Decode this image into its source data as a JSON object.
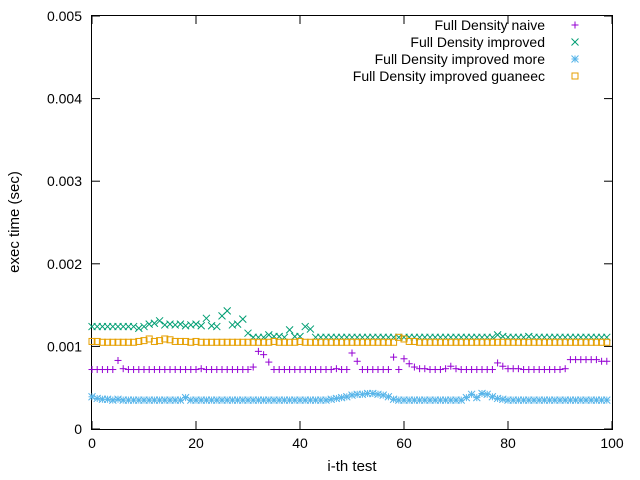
{
  "chart_data": {
    "type": "scatter",
    "xlabel": "i-th test",
    "ylabel": "exec time (sec)",
    "xlim": [
      0,
      100
    ],
    "ylim": [
      0,
      0.005
    ],
    "x_ticks": [
      0,
      20,
      40,
      60,
      80,
      100
    ],
    "x_tick_labels": [
      "0",
      "20",
      "40",
      "60",
      "80",
      "100"
    ],
    "y_ticks": [
      0,
      0.001,
      0.002,
      0.003,
      0.004,
      0.005
    ],
    "y_tick_labels": [
      "0",
      "0.001",
      "0.002",
      "0.003",
      "0.004",
      "0.005"
    ],
    "grid": false,
    "legend_position": "top-right",
    "x": [
      0,
      1,
      2,
      3,
      4,
      5,
      6,
      7,
      8,
      9,
      10,
      11,
      12,
      13,
      14,
      15,
      16,
      17,
      18,
      19,
      20,
      21,
      22,
      23,
      24,
      25,
      26,
      27,
      28,
      29,
      30,
      31,
      32,
      33,
      34,
      35,
      36,
      37,
      38,
      39,
      40,
      41,
      42,
      43,
      44,
      45,
      46,
      47,
      48,
      49,
      50,
      51,
      52,
      53,
      54,
      55,
      56,
      57,
      58,
      59,
      60,
      61,
      62,
      63,
      64,
      65,
      66,
      67,
      68,
      69,
      70,
      71,
      72,
      73,
      74,
      75,
      76,
      77,
      78,
      79,
      80,
      81,
      82,
      83,
      84,
      85,
      86,
      87,
      88,
      89,
      90,
      91,
      92,
      93,
      94,
      95,
      96,
      97,
      98,
      99
    ],
    "series": [
      {
        "name": "Full Density naive",
        "marker": "plus",
        "color": "#9400d3",
        "values": [
          0.00072,
          0.00072,
          0.00072,
          0.00072,
          0.00072,
          0.00083,
          0.00073,
          0.00072,
          0.00072,
          0.00072,
          0.00072,
          0.00072,
          0.00072,
          0.00072,
          0.00072,
          0.00072,
          0.00072,
          0.00072,
          0.00072,
          0.00072,
          0.00072,
          0.00073,
          0.00072,
          0.00072,
          0.00072,
          0.00072,
          0.00072,
          0.00072,
          0.00072,
          0.00072,
          0.00072,
          0.00075,
          0.00094,
          0.0009,
          0.00081,
          0.00072,
          0.00072,
          0.00072,
          0.00072,
          0.00072,
          0.00072,
          0.00072,
          0.00072,
          0.00072,
          0.00072,
          0.00072,
          0.00072,
          0.00073,
          0.00072,
          0.00072,
          0.00092,
          0.00082,
          0.00072,
          0.00072,
          0.00072,
          0.00072,
          0.00072,
          0.00072,
          0.00087,
          0.00072,
          0.00085,
          0.00079,
          0.00075,
          0.00073,
          0.00073,
          0.00072,
          0.00072,
          0.00072,
          0.00073,
          0.00076,
          0.00073,
          0.00072,
          0.00072,
          0.00072,
          0.00072,
          0.00072,
          0.00072,
          0.00072,
          0.0008,
          0.00076,
          0.00073,
          0.00073,
          0.00073,
          0.00072,
          0.00072,
          0.00072,
          0.00072,
          0.00072,
          0.00072,
          0.00072,
          0.00072,
          0.00073,
          0.00084,
          0.00084,
          0.00084,
          0.00084,
          0.00084,
          0.00084,
          0.00082,
          0.00082
        ]
      },
      {
        "name": "Full Density improved",
        "marker": "cross",
        "color": "#009e73",
        "values": [
          0.00124,
          0.00124,
          0.00124,
          0.00124,
          0.00124,
          0.00124,
          0.00124,
          0.00124,
          0.00124,
          0.00122,
          0.00124,
          0.00127,
          0.00128,
          0.00131,
          0.00126,
          0.00127,
          0.00126,
          0.00127,
          0.00125,
          0.00126,
          0.00127,
          0.00125,
          0.00134,
          0.00125,
          0.00124,
          0.00137,
          0.00143,
          0.00126,
          0.00127,
          0.00133,
          0.00116,
          0.00111,
          0.00111,
          0.00111,
          0.00114,
          0.00112,
          0.00112,
          0.00111,
          0.0012,
          0.00112,
          0.00112,
          0.00124,
          0.00121,
          0.00111,
          0.00111,
          0.00111,
          0.00111,
          0.00111,
          0.00111,
          0.00111,
          0.00111,
          0.00111,
          0.00111,
          0.00111,
          0.00111,
          0.00111,
          0.00111,
          0.00111,
          0.00111,
          0.00111,
          0.00111,
          0.00111,
          0.00111,
          0.00111,
          0.00111,
          0.00111,
          0.00111,
          0.00111,
          0.00111,
          0.00111,
          0.00111,
          0.00111,
          0.00111,
          0.00111,
          0.00111,
          0.00111,
          0.00111,
          0.00111,
          0.00114,
          0.00112,
          0.00111,
          0.00111,
          0.00111,
          0.00111,
          0.00112,
          0.00111,
          0.00111,
          0.00111,
          0.00111,
          0.00111,
          0.00111,
          0.00111,
          0.00111,
          0.00111,
          0.00111,
          0.00111,
          0.00111,
          0.00111,
          0.00111,
          0.00111
        ]
      },
      {
        "name": "Full Density improved more",
        "marker": "star",
        "color": "#56b4e9",
        "values": [
          0.00039,
          0.00037,
          0.00036,
          0.00036,
          0.00035,
          0.00036,
          0.00035,
          0.00035,
          0.00035,
          0.00035,
          0.00035,
          0.00035,
          0.00035,
          0.00035,
          0.00035,
          0.00035,
          0.00035,
          0.00035,
          0.00038,
          0.00035,
          0.00035,
          0.00035,
          0.00035,
          0.00035,
          0.00035,
          0.00035,
          0.00035,
          0.00035,
          0.00035,
          0.00035,
          0.00035,
          0.00035,
          0.00035,
          0.00035,
          0.00035,
          0.00035,
          0.00035,
          0.00035,
          0.00035,
          0.00035,
          0.00035,
          0.00035,
          0.00035,
          0.00035,
          0.00035,
          0.00035,
          0.00036,
          0.00037,
          0.00038,
          0.00039,
          0.00041,
          0.00042,
          0.00042,
          0.00043,
          0.00043,
          0.00042,
          0.00041,
          0.00039,
          0.00036,
          0.00035,
          0.00035,
          0.00035,
          0.00035,
          0.00035,
          0.00035,
          0.00035,
          0.00035,
          0.00035,
          0.00035,
          0.00035,
          0.00035,
          0.00035,
          0.00038,
          0.00042,
          0.00038,
          0.00043,
          0.00042,
          0.00039,
          0.00037,
          0.00036,
          0.00035,
          0.00035,
          0.00035,
          0.00035,
          0.00035,
          0.00035,
          0.00035,
          0.00035,
          0.00035,
          0.00035,
          0.00035,
          0.00035,
          0.00035,
          0.00035,
          0.00035,
          0.00035,
          0.00035,
          0.00035,
          0.00035,
          0.00035
        ]
      },
      {
        "name": "Full Density improved guaneec",
        "marker": "square",
        "color": "#e69f00",
        "values": [
          0.00106,
          0.00106,
          0.00105,
          0.00105,
          0.00105,
          0.00105,
          0.00105,
          0.00105,
          0.00105,
          0.00106,
          0.00107,
          0.00109,
          0.00106,
          0.00107,
          0.00109,
          0.00108,
          0.00106,
          0.00106,
          0.00106,
          0.00105,
          0.00106,
          0.00105,
          0.00105,
          0.00105,
          0.00105,
          0.00105,
          0.00105,
          0.00105,
          0.00105,
          0.00105,
          0.00105,
          0.00105,
          0.00105,
          0.00105,
          0.00105,
          0.00106,
          0.00105,
          0.00105,
          0.00105,
          0.00105,
          0.00106,
          0.00105,
          0.00105,
          0.00105,
          0.00105,
          0.00105,
          0.00105,
          0.00105,
          0.00105,
          0.00105,
          0.00105,
          0.00105,
          0.00105,
          0.00105,
          0.00105,
          0.00105,
          0.00105,
          0.00105,
          0.00105,
          0.00111,
          0.00109,
          0.00106,
          0.00106,
          0.00105,
          0.00105,
          0.00105,
          0.00105,
          0.00105,
          0.00105,
          0.00105,
          0.00105,
          0.00105,
          0.00105,
          0.00105,
          0.00105,
          0.00105,
          0.00105,
          0.00105,
          0.00105,
          0.00105,
          0.00105,
          0.00105,
          0.00105,
          0.00105,
          0.00105,
          0.00105,
          0.00105,
          0.00105,
          0.00105,
          0.00105,
          0.00105,
          0.00105,
          0.00105,
          0.00105,
          0.00105,
          0.00105,
          0.00105,
          0.00105,
          0.00105,
          0.00105
        ]
      }
    ]
  }
}
